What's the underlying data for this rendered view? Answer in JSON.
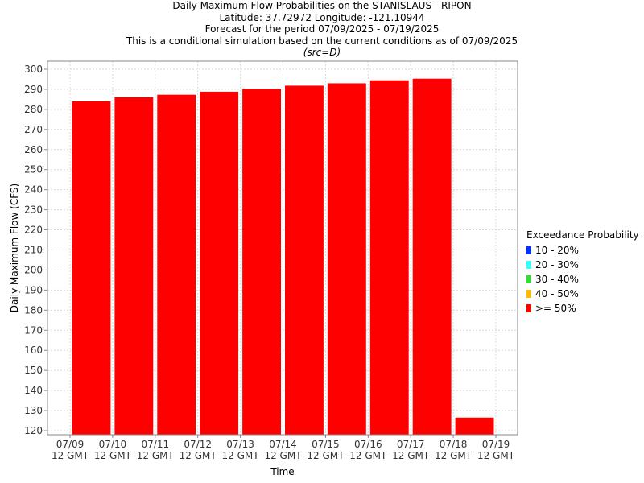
{
  "header": {
    "title": "Daily Maximum Flow Probabilities on the STANISLAUS - RIPON",
    "location": "Latitude: 37.72972 Longitude: -121.10944",
    "period": "Forecast for the period 07/09/2025 - 07/19/2025",
    "note": "This is a conditional simulation based on the current conditions as of 07/09/2025",
    "source": "(src=D)"
  },
  "legend": {
    "title": "Exceedance Probability",
    "items": [
      {
        "label": "10 - 20%",
        "color": "#0033ff"
      },
      {
        "label": "20 - 30%",
        "color": "#33ffff"
      },
      {
        "label": "30 - 40%",
        "color": "#33dd33"
      },
      {
        "label": "40 - 50%",
        "color": "#ffbb00"
      },
      {
        "label": ">= 50%",
        "color": "#ff0000"
      }
    ]
  },
  "chart_data": {
    "type": "bar",
    "title": "Daily Maximum Flow Probabilities on the STANISLAUS - RIPON",
    "xlabel": "Time",
    "ylabel": "Daily Maximum Flow (CFS)",
    "x_ticks": [
      "07/09\n12 GMT",
      "07/10\n12 GMT",
      "07/11\n12 GMT",
      "07/12\n12 GMT",
      "07/13\n12 GMT",
      "07/14\n12 GMT",
      "07/15\n12 GMT",
      "07/16\n12 GMT",
      "07/17\n12 GMT",
      "07/18\n12 GMT",
      "07/19\n12 GMT"
    ],
    "y_ticks": [
      120,
      130,
      140,
      150,
      160,
      170,
      180,
      190,
      200,
      210,
      220,
      230,
      240,
      250,
      260,
      270,
      280,
      290,
      300
    ],
    "ylim": [
      118,
      304
    ],
    "grid": true,
    "legend_position": "right",
    "series": [
      {
        "name": ">= 50%",
        "color": "#ff0000",
        "values": [
          284,
          286,
          287.3,
          288.8,
          290.2,
          291.8,
          293,
          294.5,
          295.3,
          126.5
        ]
      }
    ]
  }
}
